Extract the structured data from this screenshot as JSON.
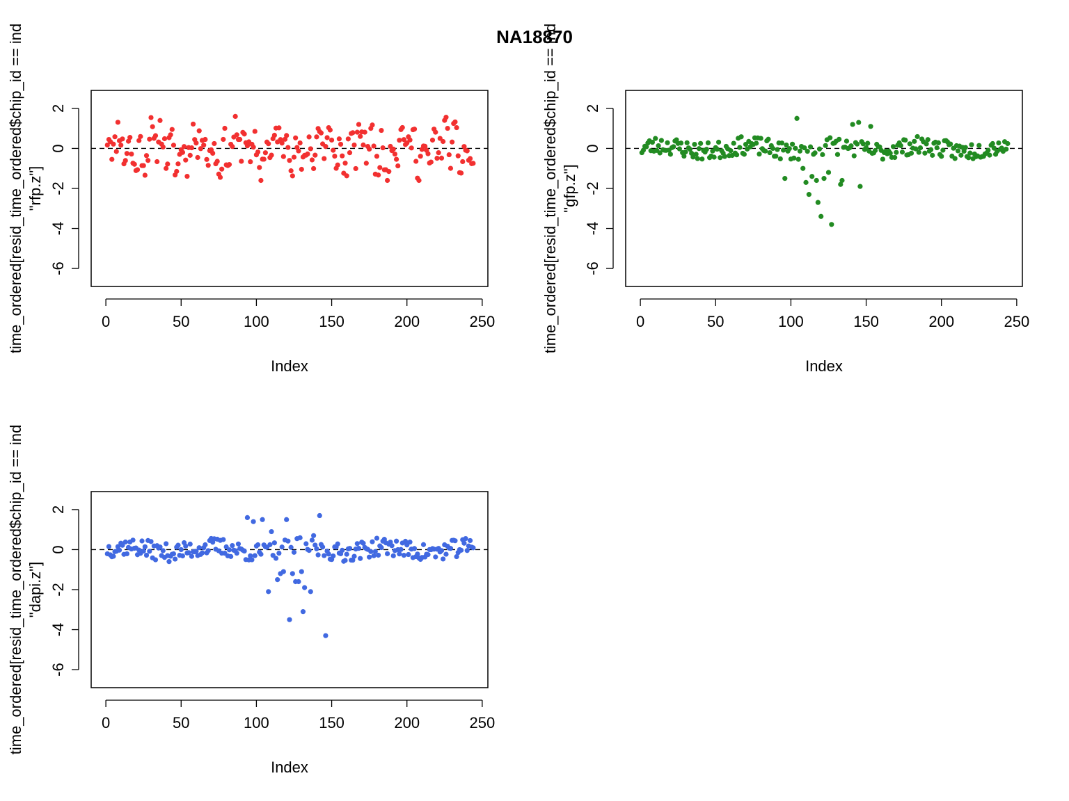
{
  "figure_title": "NA18870",
  "chart_data": [
    {
      "type": "scatter",
      "ylabel_line1": "time_ordered[resid_time_ordered$chip_id == ind",
      "ylabel_line2": "\"rfp.z\"]",
      "xlabel": "Index",
      "xlim": [
        0,
        250
      ],
      "ylim": [
        -6.9,
        2.9
      ],
      "xticks": [
        0,
        50,
        100,
        150,
        200,
        250
      ],
      "yticks": [
        2,
        0,
        -2,
        -4,
        -6
      ],
      "xtick_labels": [
        "0",
        "50",
        "100",
        "150",
        "200",
        "250"
      ],
      "ytick_labels": [
        "2",
        "0",
        "-2",
        "-4",
        "-6"
      ],
      "reference_line_y": 0,
      "point_color": "#f23030",
      "n_points": 244,
      "seed": 11,
      "values_note_base": 0,
      "spread": 0.9,
      "outliers": [],
      "points_x": [],
      "points_y": []
    },
    {
      "type": "scatter",
      "ylabel_line1": "time_ordered[resid_time_ordered$chip_id == ind",
      "ylabel_line2": "\"gfp.z\"]",
      "xlabel": "Index",
      "xlim": [
        0,
        250
      ],
      "ylim": [
        -6.9,
        2.9
      ],
      "xticks": [
        0,
        50,
        100,
        150,
        200,
        250
      ],
      "yticks": [
        2,
        0,
        -2,
        -4,
        -6
      ],
      "xtick_labels": [
        "0",
        "50",
        "100",
        "150",
        "200",
        "250"
      ],
      "ytick_labels": [
        "2",
        "0",
        "-2",
        "-4",
        "-6"
      ],
      "reference_line_y": 0,
      "point_color": "#228b22",
      "n_points": 244,
      "seed": 23,
      "spread": 0.45,
      "outliers": [
        [
          96,
          -1.5
        ],
        [
          104,
          1.5
        ],
        [
          108,
          -1.0
        ],
        [
          110,
          -1.7
        ],
        [
          112,
          -2.3
        ],
        [
          114,
          -1.4
        ],
        [
          117,
          -1.6
        ],
        [
          118,
          -2.7
        ],
        [
          120,
          -3.4
        ],
        [
          122,
          -1.5
        ],
        [
          125,
          -1.2
        ],
        [
          127,
          -3.8
        ],
        [
          133,
          -1.8
        ],
        [
          134,
          -1.6
        ],
        [
          141,
          1.2
        ],
        [
          145,
          1.3
        ],
        [
          146,
          -1.9
        ],
        [
          153,
          1.1
        ]
      ],
      "points_x": [],
      "points_y": []
    },
    {
      "type": "scatter",
      "ylabel_line1": "time_ordered[resid_time_ordered$chip_id == ind",
      "ylabel_line2": "\"dapi.z\"]",
      "xlabel": "Index",
      "xlim": [
        0,
        250
      ],
      "ylim": [
        -6.9,
        2.9
      ],
      "xticks": [
        0,
        50,
        100,
        150,
        200,
        250
      ],
      "yticks": [
        2,
        0,
        -2,
        -4,
        -6
      ],
      "xtick_labels": [
        "0",
        "50",
        "100",
        "150",
        "200",
        "250"
      ],
      "ytick_labels": [
        "2",
        "0",
        "-2",
        "-4",
        "-6"
      ],
      "reference_line_y": 0,
      "point_color": "#4169e1",
      "n_points": 244,
      "seed": 37,
      "spread": 0.45,
      "outliers": [
        [
          94,
          1.6
        ],
        [
          104,
          1.5
        ],
        [
          108,
          -2.1
        ],
        [
          114,
          -1.5
        ],
        [
          116,
          -1.2
        ],
        [
          118,
          -1.1
        ],
        [
          120,
          1.5
        ],
        [
          122,
          -3.5
        ],
        [
          124,
          -1.2
        ],
        [
          126,
          -1.6
        ],
        [
          128,
          -1.6
        ],
        [
          130,
          -1.1
        ],
        [
          131,
          -3.1
        ],
        [
          132,
          -1.9
        ],
        [
          136,
          -2.1
        ],
        [
          142,
          1.7
        ],
        [
          146,
          -4.3
        ],
        [
          98,
          1.4
        ],
        [
          110,
          0.9
        ],
        [
          138,
          0.7
        ]
      ],
      "points_x": [],
      "points_y": []
    }
  ]
}
